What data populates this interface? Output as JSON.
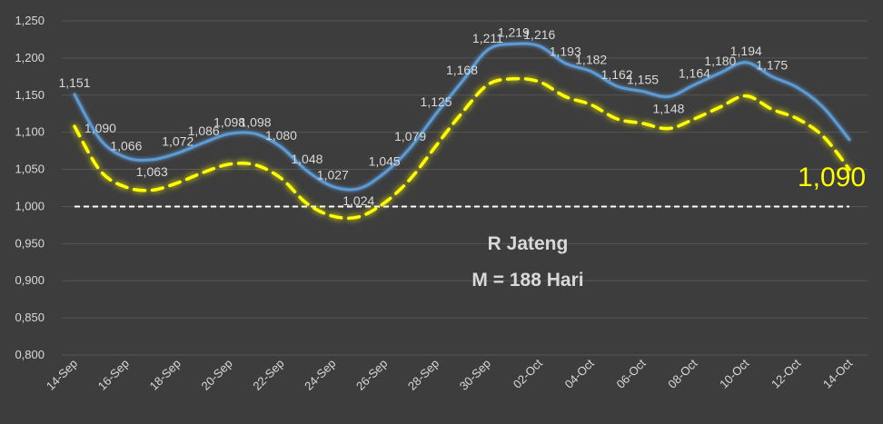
{
  "chart_data": {
    "type": "line",
    "title": "R Jateng",
    "subtitle": "M = 188 Hari",
    "xlabel": "",
    "ylabel": "",
    "ylim": [
      0.8,
      1.25
    ],
    "y_ticks": [
      "0,800",
      "0,850",
      "0,900",
      "0,950",
      "1,000",
      "1,050",
      "1,100",
      "1,150",
      "1,200",
      "1,250"
    ],
    "x_tick_labels": [
      "14-Sep",
      "16-Sep",
      "18-Sep",
      "20-Sep",
      "22-Sep",
      "24-Sep",
      "26-Sep",
      "28-Sep",
      "30-Sep",
      "02-Oct",
      "04-Oct",
      "06-Oct",
      "08-Oct",
      "10-Oct",
      "12-Oct",
      "14-Oct"
    ],
    "x": [
      "14-Sep",
      "15-Sep",
      "16-Sep",
      "17-Sep",
      "18-Sep",
      "19-Sep",
      "20-Sep",
      "21-Sep",
      "22-Sep",
      "23-Sep",
      "24-Sep",
      "25-Sep",
      "26-Sep",
      "27-Sep",
      "28-Sep",
      "29-Sep",
      "30-Sep",
      "01-Oct",
      "02-Oct",
      "03-Oct",
      "04-Oct",
      "05-Oct",
      "06-Oct",
      "07-Oct",
      "08-Oct",
      "09-Oct",
      "10-Oct",
      "11-Oct",
      "12-Oct",
      "13-Oct",
      "14-Oct"
    ],
    "series": [
      {
        "color": "#5b9bd5",
        "style": "solid",
        "values": [
          1.151,
          1.09,
          1.066,
          1.063,
          1.072,
          1.086,
          1.098,
          1.098,
          1.08,
          1.048,
          1.027,
          1.024,
          1.045,
          1.079,
          1.125,
          1.168,
          1.211,
          1.219,
          1.216,
          1.193,
          1.182,
          1.162,
          1.155,
          1.148,
          1.164,
          1.18,
          1.194,
          1.175,
          1.16,
          1.133,
          1.09
        ],
        "data_labels": [
          "1,151",
          "1,090",
          "1,066",
          "1,063",
          "1,072",
          "1,086",
          "1,098",
          "1,098",
          "1,080",
          "1,048",
          "1,027",
          "1,024",
          "1,045",
          "1,079",
          "1,125",
          "1,168",
          "1,211",
          "1,219",
          "1,216",
          "1,193",
          "1,182",
          "1,162",
          "1,155",
          "1,148",
          "1,164",
          "1,180",
          "1,194",
          "1,175",
          "",
          "",
          ""
        ]
      },
      {
        "color": "#ffff00",
        "style": "dashed",
        "values": [
          1.108,
          1.048,
          1.026,
          1.022,
          1.032,
          1.046,
          1.057,
          1.056,
          1.038,
          1.004,
          0.987,
          0.986,
          1.005,
          1.037,
          1.082,
          1.126,
          1.164,
          1.172,
          1.168,
          1.148,
          1.137,
          1.118,
          1.112,
          1.105,
          1.118,
          1.134,
          1.149,
          1.131,
          1.118,
          1.094,
          1.05
        ]
      }
    ],
    "reference_line": {
      "value": 1.0,
      "color": "#ffffff",
      "style": "dashed"
    },
    "last_value_label": "1,090",
    "grid": "horizontal",
    "legend": "none"
  }
}
